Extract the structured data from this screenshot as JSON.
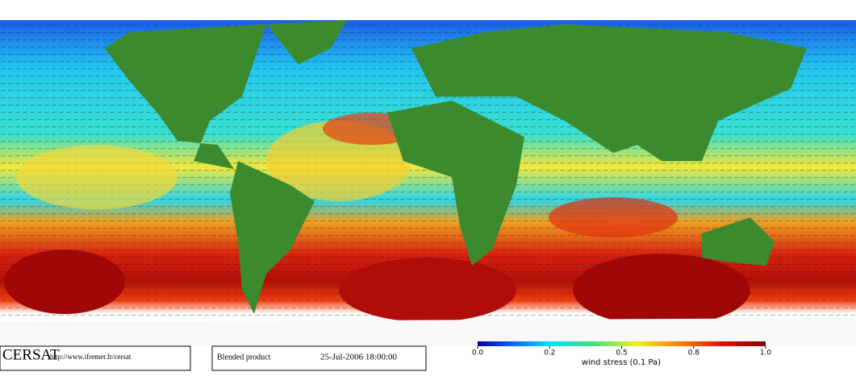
{
  "logo": "CERSAT",
  "url": "http://www.ifremer.fr/cersat",
  "product": "Blended product",
  "datetime": "25-Jul-2006 18:00:00",
  "colorbar": {
    "label": "wind stress (0.1 Pa)",
    "ticks": [
      {
        "value": 0,
        "label": "0.0"
      },
      0.2,
      0.5,
      0.8,
      {
        "value": 1,
        "label": "1.0"
      }
    ]
  }
}
